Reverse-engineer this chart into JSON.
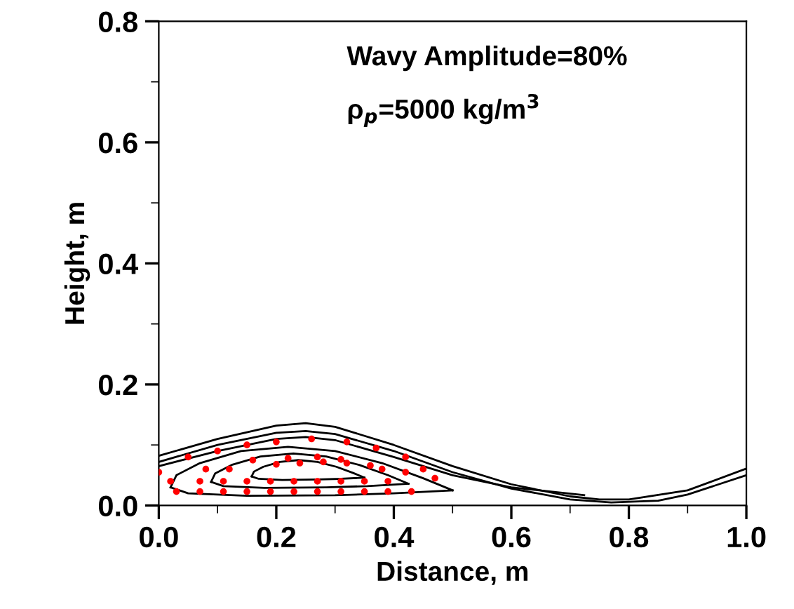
{
  "chart_data": {
    "type": "line",
    "xlabel": "Distance, m",
    "ylabel": "Height, m",
    "xlim": [
      0,
      1
    ],
    "ylim": [
      0,
      0.8
    ],
    "xticks": [
      {
        "value": 0,
        "label": "0.0"
      },
      0.2,
      0.4,
      0.6,
      0.8,
      {
        "value": 1,
        "label": "1.0"
      }
    ],
    "yticks": [
      {
        "value": 0,
        "label": "0.0"
      },
      0.2,
      0.4,
      0.6,
      0.8
    ],
    "annotations": [
      "Wavy Amplitude=80%",
      "ρ$_{p}$=5000 kg/m$^{3}$"
    ],
    "series": [
      {
        "color": "#000000",
        "x": [
          0,
          0.1,
          0.2,
          0.25,
          0.3,
          0.4,
          0.5,
          0.6,
          0.7,
          0.75,
          0.8,
          0.9,
          1.0
        ],
        "values": [
          0.082,
          0.11,
          0.132,
          0.136,
          0.13,
          0.1,
          0.065,
          0.035,
          0.015,
          0.01,
          0.01,
          0.025,
          0.061
        ]
      },
      {
        "color": "#000000",
        "x": [
          0,
          0.1,
          0.2,
          0.25,
          0.3,
          0.4,
          0.5,
          0.6,
          0.7,
          0.77,
          0.85,
          0.9,
          1.0
        ],
        "values": [
          0.072,
          0.1,
          0.12,
          0.123,
          0.118,
          0.09,
          0.055,
          0.028,
          0.01,
          0.005,
          0.008,
          0.018,
          0.05
        ]
      },
      {
        "color": "#000000",
        "x": [
          0,
          0.1,
          0.2,
          0.25,
          0.3,
          0.4,
          0.5,
          0.6,
          0.724
        ],
        "values": [
          0.065,
          0.09,
          0.11,
          0.113,
          0.108,
          0.08,
          0.05,
          0.03,
          0.017
        ]
      },
      {
        "color": "#000000",
        "x": [
          0.02,
          0.05,
          0.15,
          0.3,
          0.4,
          0.5
        ],
        "values": [
          0.03,
          0.02,
          0.016,
          0.017,
          0.02,
          0.025
        ]
      },
      {
        "color": "#000000",
        "x": [
          0.02,
          0.03,
          0.07,
          0.14,
          0.22,
          0.3,
          0.38,
          0.45,
          0.5
        ],
        "values": [
          0.03,
          0.05,
          0.07,
          0.09,
          0.097,
          0.09,
          0.07,
          0.045,
          0.025
        ]
      },
      {
        "color": "#000000",
        "x": [
          0.089,
          0.11,
          0.18,
          0.285,
          0.355,
          0.425
        ],
        "values": [
          0.039,
          0.032,
          0.029,
          0.03,
          0.032,
          0.036
        ]
      },
      {
        "color": "#000000",
        "x": [
          0.089,
          0.096,
          0.124,
          0.173,
          0.229,
          0.285,
          0.341,
          0.39,
          0.425
        ],
        "values": [
          0.039,
          0.053,
          0.067,
          0.081,
          0.086,
          0.081,
          0.067,
          0.05,
          0.036
        ]
      },
      {
        "color": "#000000",
        "x": [
          0.158,
          0.17,
          0.21,
          0.27,
          0.31,
          0.35
        ],
        "values": [
          0.048,
          0.044,
          0.042,
          0.043,
          0.044,
          0.046
        ]
      },
      {
        "color": "#000000",
        "x": [
          0.158,
          0.162,
          0.178,
          0.206,
          0.238,
          0.27,
          0.302,
          0.33,
          0.35
        ],
        "values": [
          0.048,
          0.056,
          0.064,
          0.072,
          0.075,
          0.072,
          0.064,
          0.054,
          0.046
        ]
      },
      {
        "type": "scatter",
        "color": "#ff0000",
        "marker": "circle",
        "x": [
          0.03,
          0.07,
          0.11,
          0.15,
          0.19,
          0.23,
          0.27,
          0.31,
          0.35,
          0.39,
          0.43,
          0.07,
          0.11,
          0.15,
          0.19,
          0.23,
          0.27,
          0.31,
          0.35,
          0.39,
          0.0,
          0.02,
          0.05,
          0.1,
          0.15,
          0.2,
          0.26,
          0.32,
          0.37,
          0.42,
          0.45,
          0.47,
          0.2,
          0.24,
          0.28,
          0.32,
          0.36,
          0.22,
          0.27,
          0.31,
          0.08,
          0.12,
          0.16,
          0.38,
          0.42
        ],
        "values": [
          0.023,
          0.023,
          0.023,
          0.023,
          0.023,
          0.023,
          0.023,
          0.023,
          0.023,
          0.023,
          0.023,
          0.04,
          0.04,
          0.04,
          0.04,
          0.04,
          0.04,
          0.04,
          0.04,
          0.04,
          0.055,
          0.04,
          0.08,
          0.09,
          0.1,
          0.105,
          0.11,
          0.105,
          0.095,
          0.08,
          0.06,
          0.045,
          0.068,
          0.07,
          0.072,
          0.07,
          0.066,
          0.078,
          0.08,
          0.076,
          0.06,
          0.06,
          0.075,
          0.06,
          0.055
        ]
      }
    ]
  }
}
